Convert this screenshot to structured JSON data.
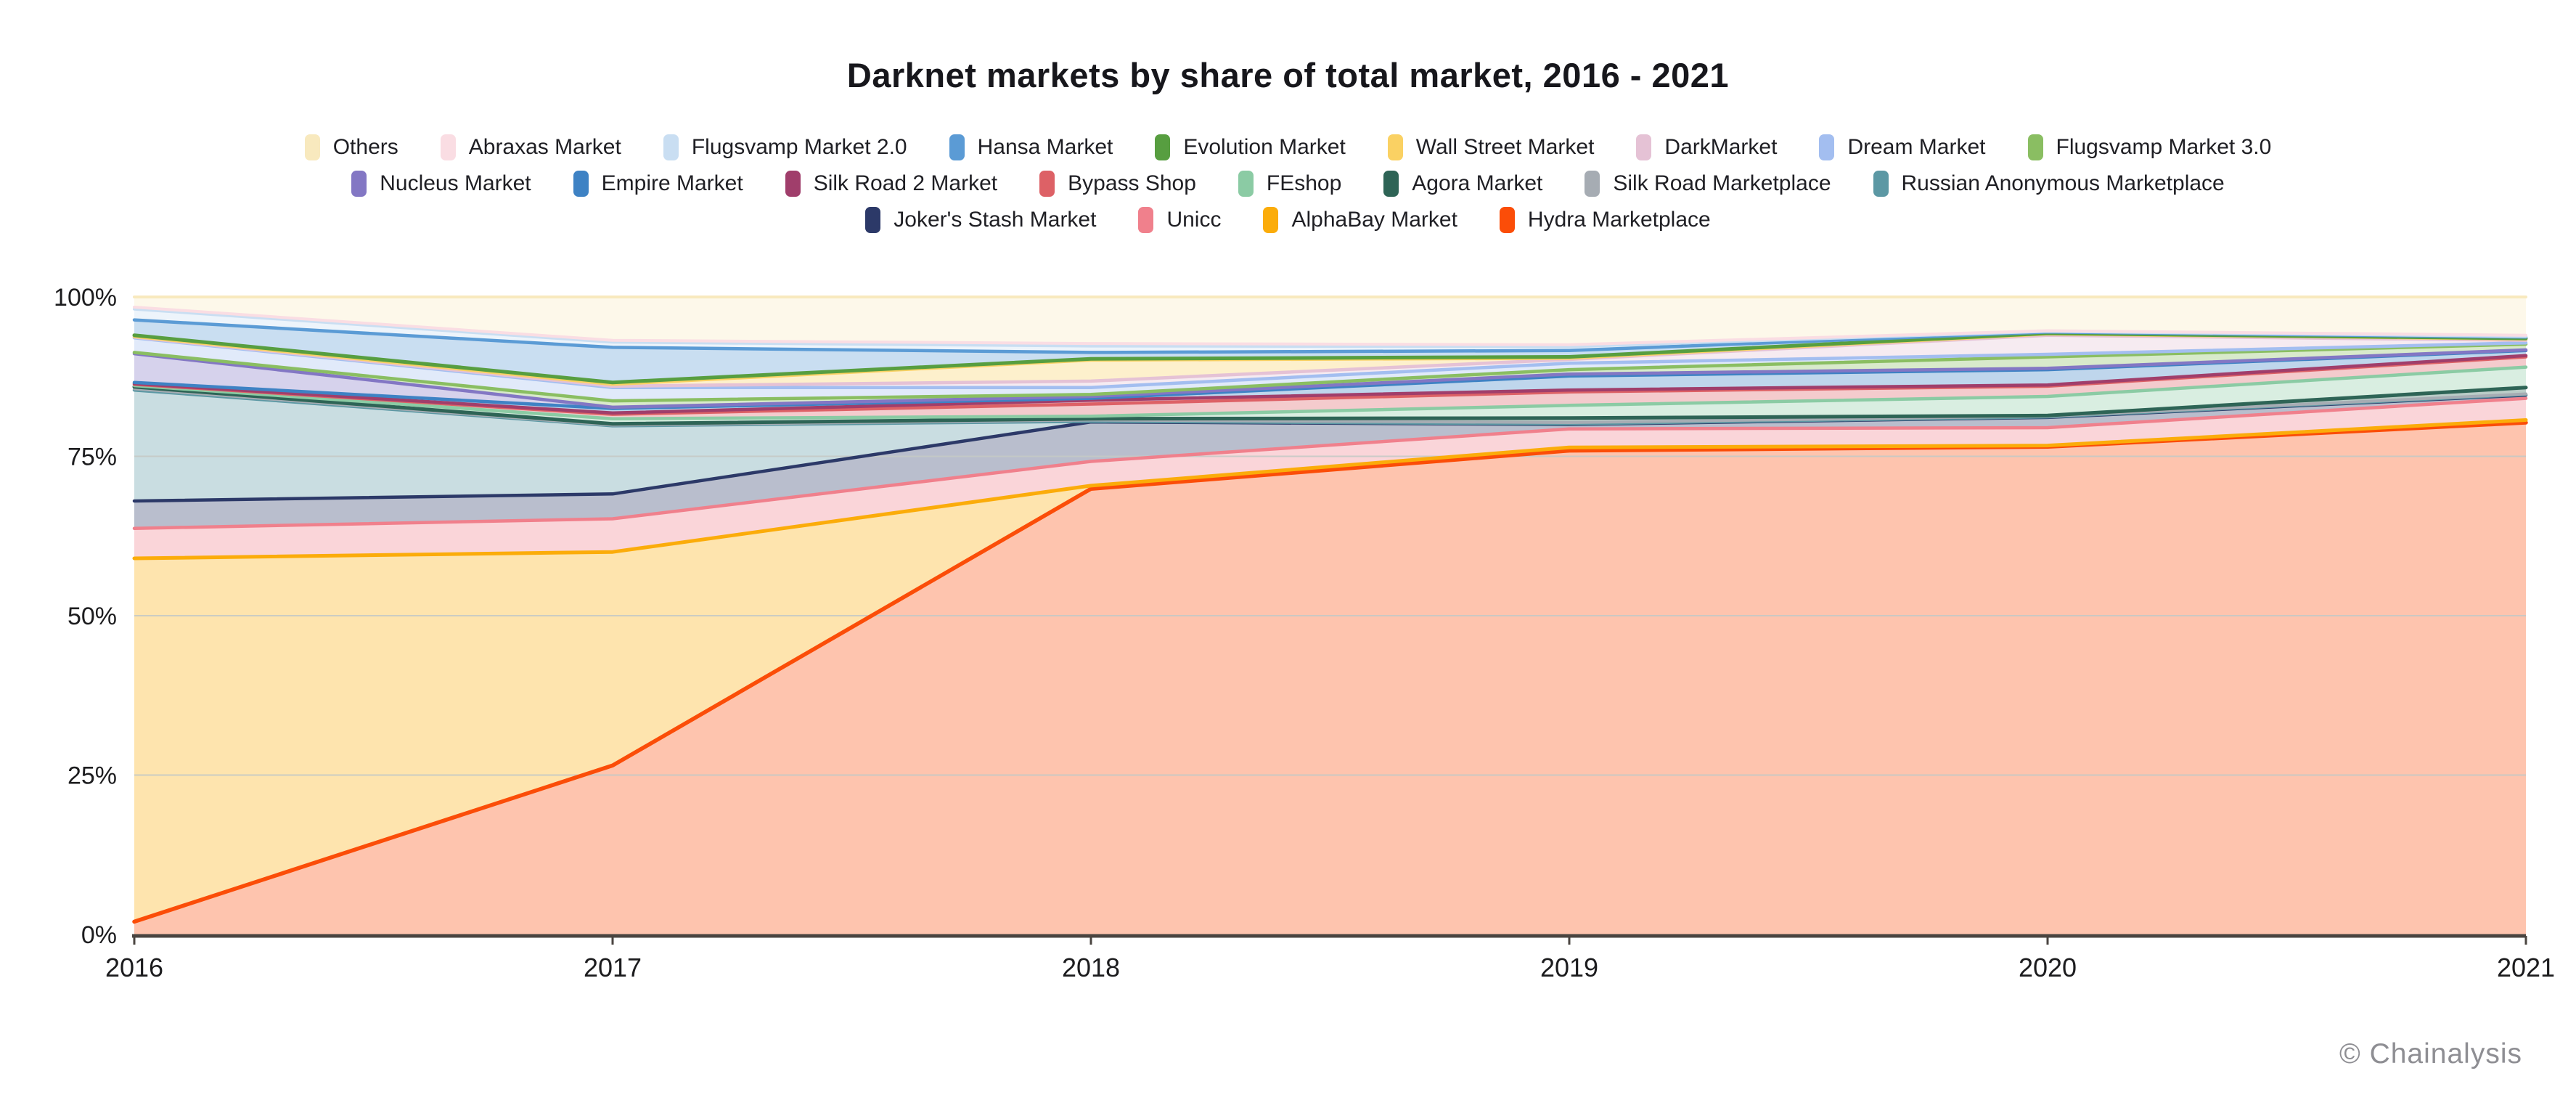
{
  "title": "Darknet markets by share of total market, 2016 - 2021",
  "attribution": "© Chainalysis",
  "colors": {
    "background": "#ffffff",
    "title_text": "#17171c",
    "axis_text": "#1c1c1e",
    "axis_line": "#4a4440",
    "gridline": "#c5c9c5",
    "attribution_text": "#8e8e93"
  },
  "chart_data": {
    "type": "area",
    "stacked": true,
    "normalized": "percent",
    "title": "Darknet markets by share of total market, 2016 - 2021",
    "xlabel": "",
    "ylabel": "",
    "x": [
      "2016",
      "2017",
      "2018",
      "2019",
      "2020",
      "2021"
    ],
    "ylim": [
      0,
      100
    ],
    "y_ticks": [
      {
        "label": "100%",
        "value": 100
      },
      {
        "label": "75%",
        "value": 75
      },
      {
        "label": "50%",
        "value": 50
      },
      {
        "label": "25%",
        "value": 25
      },
      {
        "label": "0%",
        "value": 0
      }
    ],
    "gridlines": [
      75,
      50,
      25
    ],
    "grid": true,
    "legend_position": "top",
    "fill_opacity": 0.33,
    "series_bottom_to_top": [
      {
        "name": "Hydra Marketplace",
        "color": "#FB4D08",
        "line_width": 5.5,
        "values": [
          2.0,
          26.5,
          69.9,
          75.9,
          76.5,
          80.3
        ]
      },
      {
        "name": "AlphaBay Market",
        "color": "#FBAC0A",
        "line_width": 5,
        "values": [
          57.0,
          33.5,
          0.5,
          0.5,
          0.2,
          0.4
        ]
      },
      {
        "name": "Unicc",
        "color": "#F0808C",
        "line_width": 4.5,
        "values": [
          4.7,
          5.2,
          3.8,
          2.9,
          2.8,
          3.4
        ]
      },
      {
        "name": "Joker's Stash Market",
        "color": "#2C3968",
        "line_width": 4.5,
        "values": [
          4.3,
          3.9,
          6.2,
          0.7,
          1.6,
          0.5
        ]
      },
      {
        "name": "Russian Anonymous Marketplace",
        "color": "#5C98A4",
        "line_width": 4.5,
        "values": [
          17.4,
          10.7,
          0.1,
          0.1,
          0.1,
          0.1
        ]
      },
      {
        "name": "Silk Road Marketplace",
        "color": "#A6ACB3",
        "line_width": 4,
        "values": [
          0.2,
          0.1,
          0.2,
          0.2,
          0.1,
          0.1
        ]
      },
      {
        "name": "Agora Market",
        "color": "#2E6456",
        "line_width": 5,
        "values": [
          0.3,
          0.2,
          0.2,
          0.7,
          0.1,
          1.0
        ]
      },
      {
        "name": "FEshop",
        "color": "#8BCBA4",
        "line_width": 4.5,
        "values": [
          0.2,
          0.8,
          0.4,
          2.0,
          3.0,
          3.2
        ]
      },
      {
        "name": "Bypass Shop",
        "color": "#DD6166",
        "line_width": 4.5,
        "values": [
          0.2,
          0.7,
          1.9,
          2.1,
          1.6,
          1.6
        ]
      },
      {
        "name": "Silk Road 2 Market",
        "color": "#A03E6B",
        "line_width": 4.5,
        "values": [
          0.1,
          0.2,
          0.6,
          0.3,
          0.2,
          0.2
        ]
      },
      {
        "name": "Empire Market",
        "color": "#3E82C4",
        "line_width": 4.5,
        "values": [
          0.2,
          0.7,
          0.3,
          2.2,
          2.4,
          0.8
        ]
      },
      {
        "name": "Nucleus Market",
        "color": "#8377C4",
        "line_width": 4.5,
        "values": [
          4.5,
          0.2,
          0.3,
          0.3,
          0.2,
          0.1
        ]
      },
      {
        "name": "Flugsvamp Market 3.0",
        "color": "#8ABE62",
        "line_width": 4.5,
        "values": [
          0.2,
          1.0,
          0.3,
          0.7,
          1.8,
          0.9
        ]
      },
      {
        "name": "Dream Market",
        "color": "#A3BEF0",
        "line_width": 4.5,
        "values": [
          2.3,
          2.1,
          1.1,
          1.0,
          0.4,
          0.2
        ]
      },
      {
        "name": "DarkMarket",
        "color": "#E5C2D5",
        "line_width": 4.5,
        "values": [
          0.1,
          0.2,
          1.0,
          0.6,
          3.0,
          0.4
        ]
      },
      {
        "name": "Wall Street Market",
        "color": "#FAD163",
        "line_width": 4.5,
        "values": [
          0.1,
          0.3,
          3.3,
          0.2,
          0.2,
          0.2
        ]
      },
      {
        "name": "Evolution Market",
        "color": "#579E40",
        "line_width": 5,
        "values": [
          0.2,
          0.3,
          0.2,
          0.2,
          0.1,
          0.1
        ]
      },
      {
        "name": "Hansa Market",
        "color": "#5B9BD5",
        "line_width": 4.5,
        "values": [
          2.4,
          5.5,
          1.0,
          1.0,
          0.2,
          0.2
        ]
      },
      {
        "name": "Flugsvamp Market 2.0",
        "color": "#C9DEF2",
        "line_width": 4,
        "values": [
          1.7,
          0.8,
          1.0,
          0.6,
          0.1,
          0.1
        ]
      },
      {
        "name": "Abraxas Market",
        "color": "#FADDE3",
        "line_width": 4,
        "values": [
          0.3,
          0.3,
          0.4,
          0.3,
          0.1,
          0.2
        ]
      },
      {
        "name": "Others",
        "color": "#F8E9BE",
        "line_width": 4,
        "values": [
          1.6,
          6.8,
          7.3,
          7.5,
          5.3,
          6.0
        ]
      }
    ],
    "legend_rows": [
      [
        "Others",
        "Abraxas Market",
        "Flugsvamp Market 2.0",
        "Hansa Market",
        "Evolution Market",
        "Wall Street Market",
        "DarkMarket",
        "Dream Market",
        "Flugsvamp Market 3.0"
      ],
      [
        "Nucleus Market",
        "Empire Market",
        "Silk Road 2 Market",
        "Bypass Shop",
        "FEshop",
        "Agora Market",
        "Silk Road Marketplace",
        "Russian Anonymous Marketplace"
      ],
      [
        "Joker's Stash Market",
        "Unicc",
        "AlphaBay Market",
        "Hydra Marketplace"
      ]
    ]
  },
  "plot_geometry_note": "plot area percent-normalized, x years evenly spaced"
}
